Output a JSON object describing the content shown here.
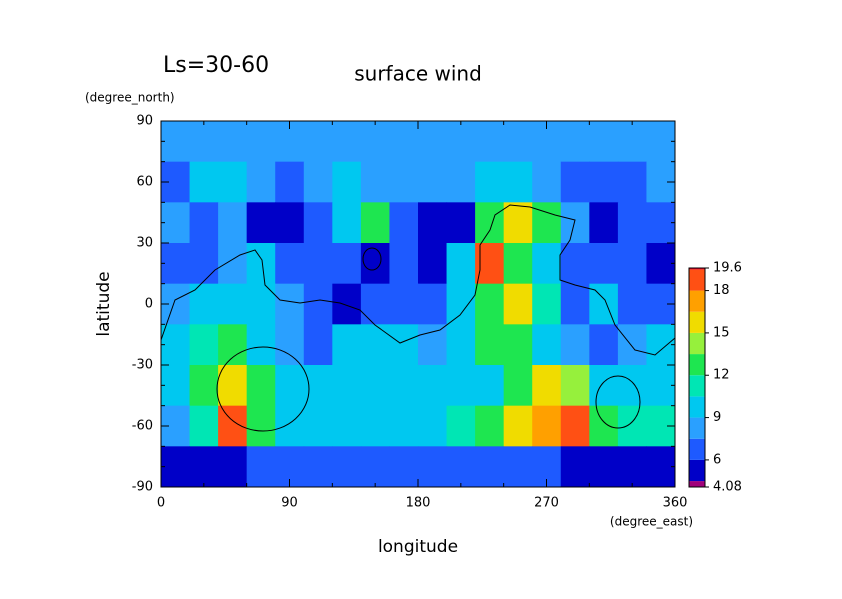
{
  "chart_data": {
    "type": "contour",
    "title": "surface wind",
    "subtitle": "Ls=30-60",
    "x_label": "longitude",
    "x_unit": "(degree_east)",
    "y_label": "latitude",
    "y_unit": "(degree_north)",
    "xlim": [
      0,
      360
    ],
    "xticks": [
      0,
      90,
      180,
      270,
      360
    ],
    "ylim": [
      -90,
      90
    ],
    "yticks": [
      -90,
      -60,
      -30,
      0,
      30,
      60,
      90
    ],
    "x": [
      10,
      30,
      50,
      70,
      90,
      110,
      130,
      150,
      170,
      190,
      210,
      230,
      250,
      270,
      290,
      310,
      330,
      350
    ],
    "y": [
      80,
      60,
      40,
      20,
      0,
      -20,
      -40,
      -60,
      -80
    ],
    "z": [
      [
        8.5,
        8,
        8,
        8,
        8.5,
        8,
        8,
        8,
        8,
        8,
        8,
        8,
        8.5,
        8.5,
        8,
        8,
        8,
        8
      ],
      [
        7,
        9.5,
        10,
        8,
        7,
        8,
        9.5,
        8,
        8,
        8,
        8,
        10,
        9,
        8.5,
        7,
        6.5,
        7,
        7.5
      ],
      [
        8,
        7,
        8,
        5.5,
        5,
        7,
        10,
        12,
        6,
        5,
        5,
        12,
        16,
        12,
        8,
        5.5,
        6,
        7
      ],
      [
        7,
        6,
        8,
        9,
        7,
        7,
        6,
        5,
        6,
        5,
        9,
        18,
        13,
        10,
        7,
        6,
        6,
        5.5
      ],
      [
        8,
        9,
        10,
        9,
        8,
        7,
        5.5,
        6,
        7,
        7,
        9,
        13,
        16,
        11,
        7,
        9,
        7,
        6
      ],
      [
        10,
        11,
        12,
        10,
        8,
        7,
        9,
        10,
        9,
        8,
        10,
        12,
        12,
        9,
        8,
        7,
        8,
        9
      ],
      [
        9,
        12,
        15,
        13,
        10,
        9,
        10,
        9,
        9,
        9,
        10,
        10,
        13,
        15,
        14,
        10,
        9,
        9
      ],
      [
        8,
        11,
        18,
        13,
        10,
        9,
        9,
        9,
        9,
        10,
        11,
        13,
        15,
        17,
        19,
        12,
        11,
        11
      ],
      [
        5,
        5,
        5.5,
        6,
        6,
        6.5,
        6.5,
        6,
        6,
        6,
        6,
        6,
        6,
        6,
        5.5,
        5,
        5,
        5
      ]
    ],
    "colorbar": {
      "levels": [
        4.08,
        4.5,
        6,
        7.5,
        9,
        10.5,
        12,
        13.5,
        15,
        16.5,
        18,
        19.5,
        19.6
      ],
      "colors": [
        "#a0007a",
        "#0000c8",
        "#1e5aff",
        "#2aa0ff",
        "#00c8f0",
        "#00e6b4",
        "#1ee650",
        "#96f03c",
        "#f0dc00",
        "#ffa000",
        "#ff5014",
        "#e6002d"
      ],
      "ticks": [
        4.08,
        6,
        9,
        12,
        15,
        18,
        19.6
      ]
    }
  }
}
